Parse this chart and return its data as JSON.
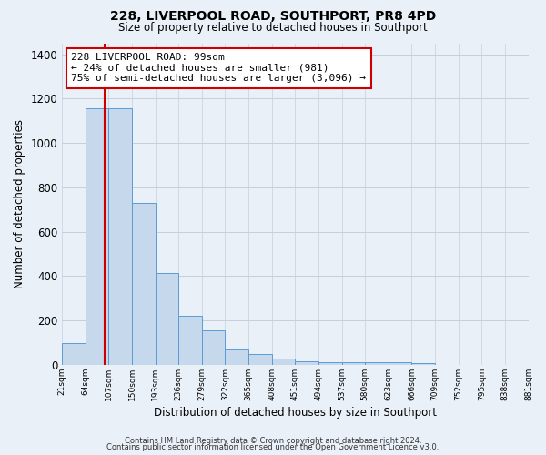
{
  "title": "228, LIVERPOOL ROAD, SOUTHPORT, PR8 4PD",
  "subtitle": "Size of property relative to detached houses in Southport",
  "xlabel": "Distribution of detached houses by size in Southport",
  "ylabel": "Number of detached properties",
  "bin_edges": [
    21,
    64,
    107,
    150,
    193,
    236,
    279,
    322,
    365,
    408,
    451,
    494,
    537,
    580,
    623,
    666,
    709,
    752,
    795,
    838,
    881
  ],
  "bar_heights": [
    100,
    1155,
    1155,
    730,
    415,
    220,
    155,
    70,
    48,
    30,
    18,
    12,
    10,
    10,
    10,
    8,
    0,
    0,
    0,
    0
  ],
  "bar_color": "#c5d8ec",
  "bar_edge_color": "#5b9bd5",
  "property_size": 99,
  "property_line_color": "#cc0000",
  "annotation_text": "228 LIVERPOOL ROAD: 99sqm\n← 24% of detached houses are smaller (981)\n75% of semi-detached houses are larger (3,096) →",
  "annotation_box_facecolor": "#ffffff",
  "annotation_box_edgecolor": "#cc0000",
  "ylim": [
    0,
    1450
  ],
  "yticks": [
    0,
    200,
    400,
    600,
    800,
    1000,
    1200,
    1400
  ],
  "tick_labels": [
    "21sqm",
    "64sqm",
    "107sqm",
    "150sqm",
    "193sqm",
    "236sqm",
    "279sqm",
    "322sqm",
    "365sqm",
    "408sqm",
    "451sqm",
    "494sqm",
    "537sqm",
    "580sqm",
    "623sqm",
    "666sqm",
    "709sqm",
    "752sqm",
    "795sqm",
    "838sqm",
    "881sqm"
  ],
  "footer_line1": "Contains HM Land Registry data © Crown copyright and database right 2024.",
  "footer_line2": "Contains public sector information licensed under the Open Government Licence v3.0.",
  "background_color": "#eaf0f8",
  "grid_color": "#c5d0dc"
}
